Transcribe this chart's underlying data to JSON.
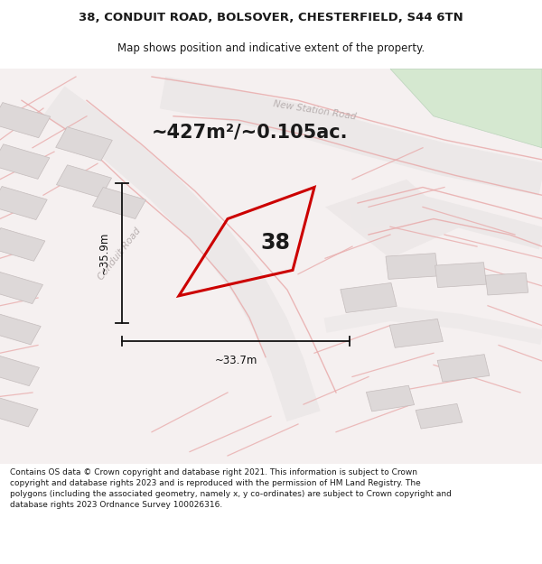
{
  "title_line1": "38, CONDUIT ROAD, BOLSOVER, CHESTERFIELD, S44 6TN",
  "title_line2": "Map shows position and indicative extent of the property.",
  "area_label": "~427m²/~0.105ac.",
  "property_number": "38",
  "width_label": "~33.7m",
  "height_label": "~35.9m",
  "footer_text": "Contains OS data © Crown copyright and database right 2021. This information is subject to Crown copyright and database rights 2023 and is reproduced with the permission of HM Land Registry. The polygons (including the associated geometry, namely x, y co-ordinates) are subject to Crown copyright and database rights 2023 Ordnance Survey 100026316.",
  "bg_color": "#f7f3f3",
  "map_bg": "#f5f0f0",
  "property_polygon_color": "#cc0000",
  "text_color": "#1a1a1a",
  "footer_color": "#1a1a1a",
  "figsize": [
    6.0,
    6.25
  ],
  "dpi": 100
}
